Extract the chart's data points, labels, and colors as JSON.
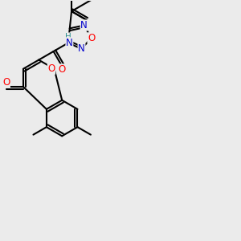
{
  "background_color": "#ebebeb",
  "bond_color": "#000000",
  "bond_width": 1.5,
  "atom_colors": {
    "O": "#ff0000",
    "N": "#0000cd",
    "H": "#2f8f8f"
  },
  "figsize": [
    3.0,
    3.0
  ],
  "dpi": 100
}
